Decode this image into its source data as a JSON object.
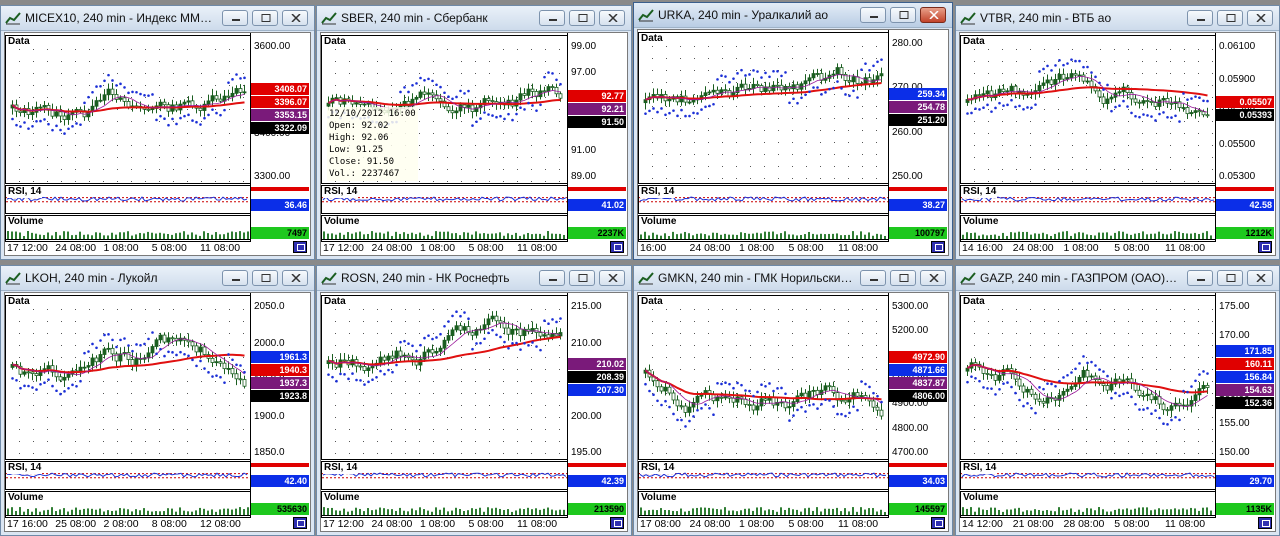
{
  "colors": {
    "candle": "#1b5e20",
    "ma_red": "#e01010",
    "ma_purple": "#9b1a9b",
    "sar": "#1b2fd6",
    "rsi_blue": "#1b2fd6",
    "volume": "#2e7d32",
    "tag_red": "#e00000",
    "tag_blue": "#0b2ee8",
    "tag_purple": "#7a1a7a",
    "tag_black": "#000000",
    "tag_green": "#1ec81e"
  },
  "windows": [
    {
      "id": "micex",
      "title": "MICEX10, 240 min - Индекс ММВБ...",
      "price_ticks": [
        "3600.00",
        "3500.00",
        "3400.00",
        "3300.00"
      ],
      "tags": [
        {
          "text": "3408.07",
          "bg": "#e00000"
        },
        {
          "text": "3396.07",
          "bg": "#e00000"
        },
        {
          "text": "3353.15",
          "bg": "#7a1a7a"
        },
        {
          "text": "3322.09",
          "bg": "#000000"
        }
      ],
      "rsi_tag": "36.46",
      "vol_tag": "7497",
      "x_ticks": [
        "17 12:00",
        "24 08:00",
        "1 08:00",
        "5 08:00",
        "11 08:00"
      ],
      "panel_data": "Data",
      "panel_rsi": "RSI, 14",
      "panel_vol": "Volume",
      "icons": {
        "app": "chart-icon"
      }
    },
    {
      "id": "sber",
      "title": "SBER, 240 min - Сбербанк",
      "price_ticks": [
        "99.00",
        "97.00",
        "95.00",
        "93.00",
        "91.00",
        "89.00"
      ],
      "tags": [
        {
          "text": "92.77",
          "bg": "#e00000"
        },
        {
          "text": "92.21",
          "bg": "#7a1a7a"
        },
        {
          "text": "91.50",
          "bg": "#000000"
        }
      ],
      "rsi_tag": "41.02",
      "vol_tag": "2237K",
      "x_ticks": [
        "17 12:00",
        "24 08:00",
        "1 08:00",
        "5 08:00",
        "11 08:00"
      ],
      "panel_data": "Data",
      "panel_rsi": "RSI, 14",
      "panel_vol": "Volume",
      "tooltip": {
        "date": "12/10/2012 16:00",
        "open": "Open: 92.02",
        "high": "High: 92.06",
        "low": "Low: 91.25",
        "close": "Close: 91.50",
        "vol": "Vol.: 2237467"
      }
    },
    {
      "id": "urka",
      "title": "URKA, 240 min - Уралкалий ао",
      "price_ticks": [
        "280.00",
        "270.00",
        "260.00",
        "250.00"
      ],
      "tags": [
        {
          "text": "259.34",
          "bg": "#0b2ee8"
        },
        {
          "text": "254.78",
          "bg": "#7a1a7a"
        },
        {
          "text": "251.20",
          "bg": "#000000"
        }
      ],
      "rsi_tag": "38.27",
      "vol_tag": "100797",
      "x_ticks": [
        "16:00",
        "24 08:00",
        "1 08:00",
        "5 08:00",
        "11 08:00"
      ],
      "panel_data": "Data",
      "panel_rsi": "RSI, 14",
      "panel_vol": "Volume"
    },
    {
      "id": "vtbr",
      "title": "VTBR, 240 min - ВТБ ао",
      "price_ticks": [
        "0.06100",
        "0.05900",
        "0.05700",
        "0.05500",
        "0.05300"
      ],
      "tags": [
        {
          "text": "0.05507",
          "bg": "#e00000"
        },
        {
          "text": "0.05393",
          "bg": "#000000"
        }
      ],
      "rsi_tag": "42.58",
      "vol_tag": "1212K",
      "x_ticks": [
        "14 16:00",
        "24 08:00",
        "1 08:00",
        "5 08:00",
        "11 08:00"
      ],
      "panel_data": "Data",
      "panel_rsi": "RSI, 14",
      "panel_vol": "Volume"
    },
    {
      "id": "lkoh",
      "title": "LKOH, 240 min - Лукойл",
      "price_ticks": [
        "2050.0",
        "2000.0",
        "1950.0",
        "1900.0",
        "1850.0"
      ],
      "tags": [
        {
          "text": "1961.3",
          "bg": "#0b2ee8"
        },
        {
          "text": "1940.3",
          "bg": "#e00000"
        },
        {
          "text": "1937.3",
          "bg": "#7a1a7a"
        },
        {
          "text": "1923.8",
          "bg": "#000000"
        }
      ],
      "rsi_tag": "42.40",
      "vol_tag": "535630",
      "x_ticks": [
        "17 16:00",
        "25 08:00",
        "2 08:00",
        "8 08:00",
        "12 08:00"
      ],
      "panel_data": "Data",
      "panel_rsi": "RSI, 14",
      "panel_vol": "Volume"
    },
    {
      "id": "rosn",
      "title": "ROSN, 240 min - НК Роснефть",
      "price_ticks": [
        "215.00",
        "210.00",
        "205.00",
        "200.00",
        "195.00"
      ],
      "tags": [
        {
          "text": "210.02",
          "bg": "#7a1a7a"
        },
        {
          "text": "208.39",
          "bg": "#000000"
        },
        {
          "text": "207.30",
          "bg": "#0b2ee8"
        }
      ],
      "rsi_tag": "42.39",
      "vol_tag": "213590",
      "x_ticks": [
        "17 12:00",
        "24 08:00",
        "1 08:00",
        "5 08:00",
        "11 08:00"
      ],
      "panel_data": "Data",
      "panel_rsi": "RSI, 14",
      "panel_vol": "Volume"
    },
    {
      "id": "gmkn",
      "title": "GMKN, 240 min - ГМК Норильский ...",
      "price_ticks": [
        "5300.00",
        "5200.00",
        "5100.00",
        "5000.00",
        "4900.00",
        "4800.00",
        "4700.00"
      ],
      "tags": [
        {
          "text": "4972.90",
          "bg": "#e00000"
        },
        {
          "text": "4871.66",
          "bg": "#0b2ee8"
        },
        {
          "text": "4837.87",
          "bg": "#7a1a7a"
        },
        {
          "text": "4806.00",
          "bg": "#000000"
        }
      ],
      "rsi_tag": "34.03",
      "vol_tag": "145597",
      "x_ticks": [
        "17 08:00",
        "24 08:00",
        "1 08:00",
        "5 08:00",
        "11 08:00"
      ],
      "panel_data": "Data",
      "panel_rsi": "RSI, 14",
      "panel_vol": "Volume"
    },
    {
      "id": "gazp",
      "title": "GAZP, 240 min - ГАЗПРОМ (ОАО) ао",
      "price_ticks": [
        "175.00",
        "170.00",
        "165.00",
        "160.00",
        "155.00",
        "150.00"
      ],
      "tags": [
        {
          "text": "171.85",
          "bg": "#0b2ee8"
        },
        {
          "text": "160.11",
          "bg": "#e00000"
        },
        {
          "text": "156.84",
          "bg": "#0b2ee8"
        },
        {
          "text": "154.63",
          "bg": "#7a1a7a"
        },
        {
          "text": "152.36",
          "bg": "#000000"
        }
      ],
      "rsi_tag": "29.70",
      "vol_tag": "1135K",
      "x_ticks": [
        "14 12:00",
        "21 08:00",
        "28 08:00",
        "5 08:00",
        "11 08:00"
      ],
      "panel_data": "Data",
      "panel_rsi": "RSI, 14",
      "panel_vol": "Volume"
    }
  ]
}
